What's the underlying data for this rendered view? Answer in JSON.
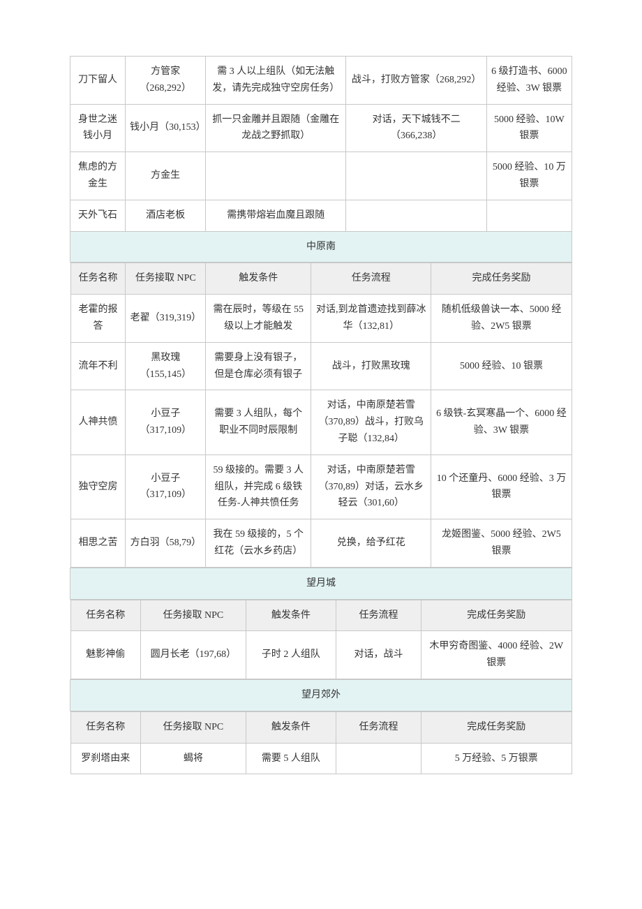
{
  "top_rows": [
    {
      "name": "刀下留人",
      "npc": "方管家（268,292）",
      "trigger": "需 3 人以上组队（如无法触发，请先完成独守空房任务）",
      "flow": "战斗，打败方管家（268,292）",
      "reward": "6 级打造书、6000 经验、3W 银票"
    },
    {
      "name": "身世之迷钱小月",
      "npc": "钱小月（30,153）",
      "trigger": "抓一只金雕并且跟随（金雕在龙战之野抓取）",
      "flow": "对话，天下城钱不二（366,238）",
      "reward": "5000 经验、10W 银票"
    },
    {
      "name": "焦虑的方金生",
      "npc": "方金生",
      "trigger": "",
      "flow": "",
      "reward": "5000 经验、10 万银票"
    },
    {
      "name": "天外飞石",
      "npc": "酒店老板",
      "trigger": "需携带熔岩血魔且跟随",
      "flow": "",
      "reward": ""
    }
  ],
  "headers": {
    "task_name": "任务名称",
    "npc": "任务接取 NPC",
    "trigger": "触发条件",
    "flow": "任务流程",
    "reward": "完成任务奖励"
  },
  "sections": [
    {
      "region": "中原南",
      "cols": [
        11,
        16,
        21,
        24,
        28
      ],
      "rows": [
        {
          "name": "老霍的报答",
          "npc": "老翟（319,319）",
          "trigger": "需在辰时，等级在 55 级以上才能触发",
          "flow": "对话,到龙首遗迹找到薛冰华（132,81）",
          "reward": "随机低级兽诀一本、5000 经验、2W5 银票"
        },
        {
          "name": "流年不利",
          "npc": "黑玫瑰（155,145）",
          "trigger": "需要身上没有银子，但是仓库必须有银子",
          "flow": "战斗，打败黑玫瑰",
          "reward": "5000 经验、10 银票"
        },
        {
          "name": "人神共愤",
          "npc": "小豆子（317,109）",
          "trigger": "需要 3 人组队，每个职业不同时辰限制",
          "flow": "对话，中南原楚若雪（370,89）战斗，打败乌子聪（132,84）",
          "reward": "6 级铁-玄冥寒晶一个、6000 经验、3W 银票"
        },
        {
          "name": "独守空房",
          "npc": "小豆子（317,109）",
          "trigger": "59 级接的。需要 3 人组队，并完成 6 级铁任务-人神共愤任务",
          "flow": "对话，中南原楚若雪（370,89）对话，云水乡轻云（301,60）",
          "reward": "10 个还童丹、6000 经验、3 万银票"
        },
        {
          "name": "相思之苦",
          "npc": "方白羽（58,79）",
          "trigger": "我在 59 级接的，5 个红花（云水乡药店）",
          "flow": "兑换，给予红花",
          "reward": "龙姬图鉴、5000 经验、2W5 银票"
        }
      ]
    },
    {
      "region": "望月城",
      "cols": [
        14,
        21,
        18,
        17,
        30
      ],
      "rows": [
        {
          "name": "魅影神偷",
          "npc": "圆月长老（197,68）",
          "trigger": "子时 2 人组队",
          "flow": "对话，战斗",
          "reward": "木甲穷奇图鉴、4000 经验、2W 银票"
        }
      ]
    },
    {
      "region": "望月郊外",
      "cols": [
        14,
        21,
        18,
        17,
        30
      ],
      "rows": [
        {
          "name": "罗刹塔由来",
          "npc": "蝎将",
          "trigger": "需要 5 人组队",
          "flow": "",
          "reward": "5 万经验、5 万银票"
        }
      ]
    }
  ]
}
